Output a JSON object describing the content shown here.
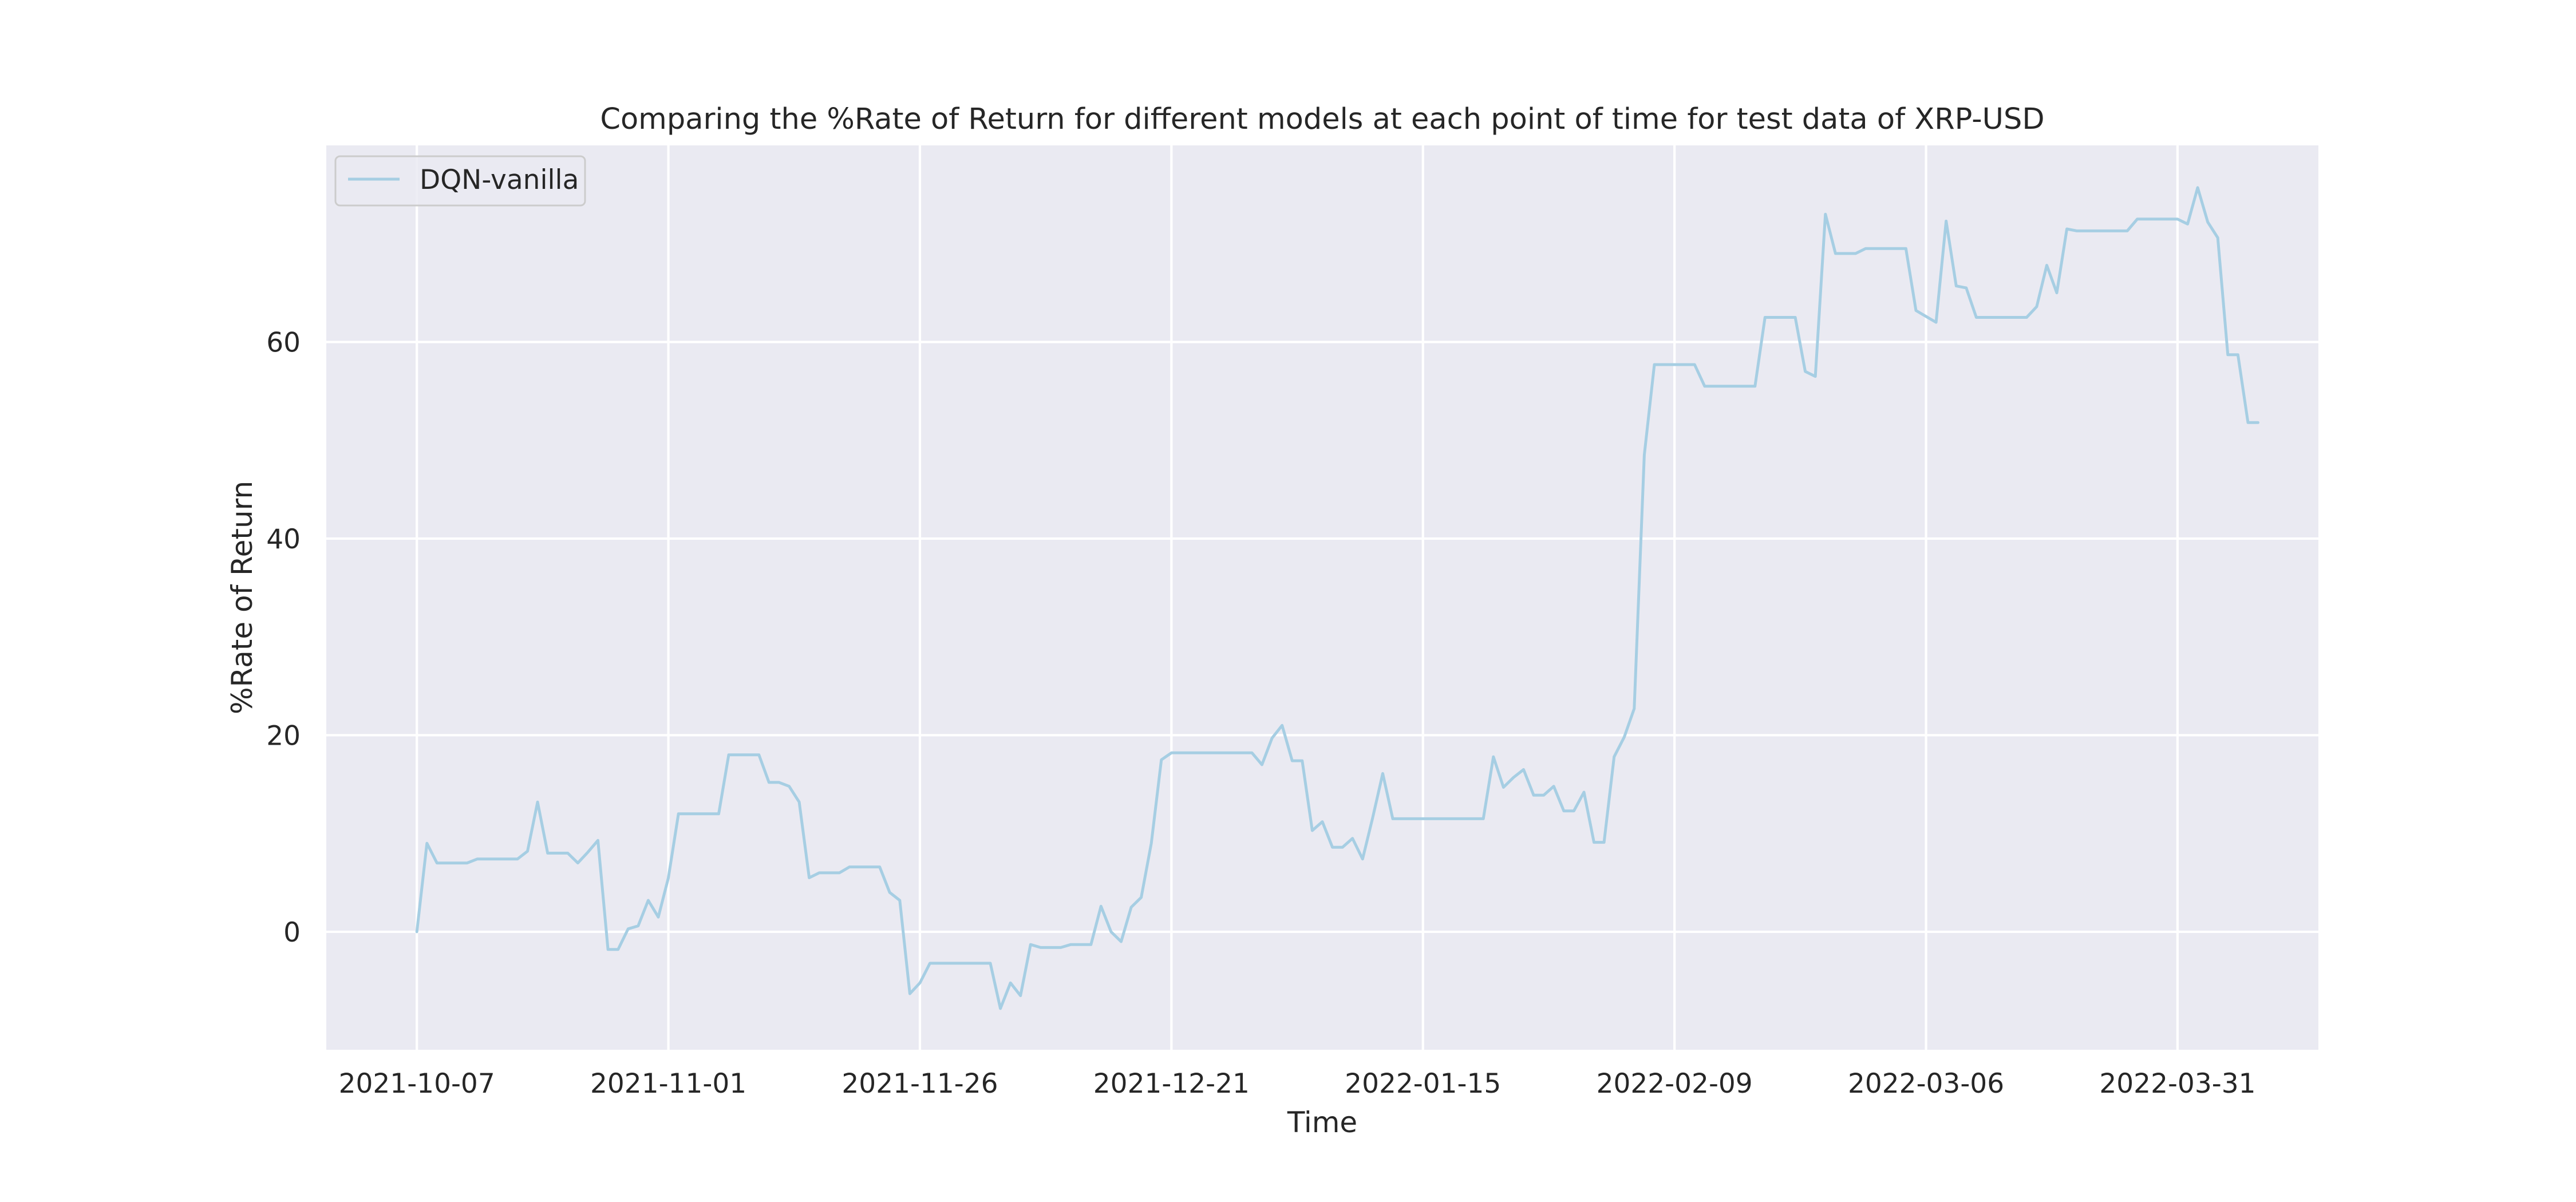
{
  "chart_data": {
    "type": "line",
    "title": "Comparing the %Rate of Return for different models at each point of time for test data of XRP-USD",
    "xlabel": "Time",
    "ylabel": "%Rate of Return",
    "x_ticks": [
      "2021-10-07",
      "2021-11-01",
      "2021-11-26",
      "2021-12-21",
      "2022-01-15",
      "2022-02-09",
      "2022-03-06",
      "2022-03-31"
    ],
    "y_ticks": [
      "0",
      "20",
      "40",
      "60"
    ],
    "xlim": [
      "2021-09-28",
      "2022-04-14"
    ],
    "ylim": [
      -12,
      80
    ],
    "grid": true,
    "legend_position": "upper-left",
    "series": [
      {
        "name": "DQN-vanilla",
        "color": "#a6cee3",
        "points": [
          [
            "2021-10-07",
            0
          ],
          [
            "2021-10-08",
            9
          ],
          [
            "2021-10-09",
            7
          ],
          [
            "2021-10-10",
            7
          ],
          [
            "2021-10-11",
            7
          ],
          [
            "2021-10-12",
            7
          ],
          [
            "2021-10-13",
            7.4
          ],
          [
            "2021-10-14",
            7.4
          ],
          [
            "2021-10-15",
            7.4
          ],
          [
            "2021-10-16",
            7.4
          ],
          [
            "2021-10-17",
            7.4
          ],
          [
            "2021-10-18",
            8.2
          ],
          [
            "2021-10-19",
            13.2
          ],
          [
            "2021-10-20",
            8
          ],
          [
            "2021-10-21",
            8
          ],
          [
            "2021-10-22",
            8
          ],
          [
            "2021-10-23",
            7
          ],
          [
            "2021-10-24",
            8.1
          ],
          [
            "2021-10-25",
            9.3
          ],
          [
            "2021-10-26",
            -1.8
          ],
          [
            "2021-10-27",
            -1.8
          ],
          [
            "2021-10-28",
            0.3
          ],
          [
            "2021-10-29",
            0.6
          ],
          [
            "2021-10-30",
            3.2
          ],
          [
            "2021-10-31",
            1.5
          ],
          [
            "2021-11-01",
            5.5
          ],
          [
            "2021-11-02",
            12
          ],
          [
            "2021-11-03",
            12
          ],
          [
            "2021-11-04",
            12
          ],
          [
            "2021-11-05",
            12
          ],
          [
            "2021-11-06",
            12
          ],
          [
            "2021-11-07",
            18
          ],
          [
            "2021-11-08",
            18
          ],
          [
            "2021-11-09",
            18
          ],
          [
            "2021-11-10",
            18
          ],
          [
            "2021-11-11",
            15.2
          ],
          [
            "2021-11-12",
            15.2
          ],
          [
            "2021-11-13",
            14.8
          ],
          [
            "2021-11-14",
            13.2
          ],
          [
            "2021-11-15",
            5.5
          ],
          [
            "2021-11-16",
            6
          ],
          [
            "2021-11-17",
            6
          ],
          [
            "2021-11-18",
            6
          ],
          [
            "2021-11-19",
            6.6
          ],
          [
            "2021-11-20",
            6.6
          ],
          [
            "2021-11-21",
            6.6
          ],
          [
            "2021-11-22",
            6.6
          ],
          [
            "2021-11-23",
            4
          ],
          [
            "2021-11-24",
            3.2
          ],
          [
            "2021-11-25",
            -6.3
          ],
          [
            "2021-11-26",
            -5.2
          ],
          [
            "2021-11-27",
            -3.2
          ],
          [
            "2021-11-28",
            -3.2
          ],
          [
            "2021-11-29",
            -3.2
          ],
          [
            "2021-11-30",
            -3.2
          ],
          [
            "2021-12-01",
            -3.2
          ],
          [
            "2021-12-02",
            -3.2
          ],
          [
            "2021-12-03",
            -3.2
          ],
          [
            "2021-12-04",
            -7.8
          ],
          [
            "2021-12-05",
            -5.2
          ],
          [
            "2021-12-06",
            -6.5
          ],
          [
            "2021-12-07",
            -1.3
          ],
          [
            "2021-12-08",
            -1.6
          ],
          [
            "2021-12-09",
            -1.6
          ],
          [
            "2021-12-10",
            -1.6
          ],
          [
            "2021-12-11",
            -1.3
          ],
          [
            "2021-12-12",
            -1.3
          ],
          [
            "2021-12-13",
            -1.3
          ],
          [
            "2021-12-14",
            2.6
          ],
          [
            "2021-12-15",
            0
          ],
          [
            "2021-12-16",
            -1
          ],
          [
            "2021-12-17",
            2.5
          ],
          [
            "2021-12-18",
            3.5
          ],
          [
            "2021-12-19",
            9
          ],
          [
            "2021-12-20",
            17.5
          ],
          [
            "2021-12-21",
            18.2
          ],
          [
            "2021-12-22",
            18.2
          ],
          [
            "2021-12-23",
            18.2
          ],
          [
            "2021-12-24",
            18.2
          ],
          [
            "2021-12-25",
            18.2
          ],
          [
            "2021-12-26",
            18.2
          ],
          [
            "2021-12-27",
            18.2
          ],
          [
            "2021-12-28",
            18.2
          ],
          [
            "2021-12-29",
            18.2
          ],
          [
            "2021-12-30",
            17
          ],
          [
            "2021-12-31",
            19.7
          ],
          [
            "2022-01-01",
            21
          ],
          [
            "2022-01-02",
            17.4
          ],
          [
            "2022-01-03",
            17.4
          ],
          [
            "2022-01-04",
            10.3
          ],
          [
            "2022-01-05",
            11.2
          ],
          [
            "2022-01-06",
            8.6
          ],
          [
            "2022-01-07",
            8.6
          ],
          [
            "2022-01-08",
            9.5
          ],
          [
            "2022-01-09",
            7.4
          ],
          [
            "2022-01-10",
            11.6
          ],
          [
            "2022-01-11",
            16.1
          ],
          [
            "2022-01-12",
            11.5
          ],
          [
            "2022-01-13",
            11.5
          ],
          [
            "2022-01-14",
            11.5
          ],
          [
            "2022-01-15",
            11.5
          ],
          [
            "2022-01-16",
            11.5
          ],
          [
            "2022-01-17",
            11.5
          ],
          [
            "2022-01-18",
            11.5
          ],
          [
            "2022-01-19",
            11.5
          ],
          [
            "2022-01-20",
            11.5
          ],
          [
            "2022-01-21",
            11.5
          ],
          [
            "2022-01-22",
            17.8
          ],
          [
            "2022-01-23",
            14.7
          ],
          [
            "2022-01-24",
            15.7
          ],
          [
            "2022-01-25",
            16.5
          ],
          [
            "2022-01-26",
            13.9
          ],
          [
            "2022-01-27",
            13.9
          ],
          [
            "2022-01-28",
            14.8
          ],
          [
            "2022-01-29",
            12.3
          ],
          [
            "2022-01-30",
            12.3
          ],
          [
            "2022-01-31",
            14.2
          ],
          [
            "2022-02-01",
            9.1
          ],
          [
            "2022-02-02",
            9.1
          ],
          [
            "2022-02-03",
            17.8
          ],
          [
            "2022-02-04",
            19.8
          ],
          [
            "2022-02-05",
            22.7
          ],
          [
            "2022-02-06",
            48.5
          ],
          [
            "2022-02-07",
            57.7
          ],
          [
            "2022-02-08",
            57.7
          ],
          [
            "2022-02-09",
            57.7
          ],
          [
            "2022-02-10",
            57.7
          ],
          [
            "2022-02-11",
            57.7
          ],
          [
            "2022-02-12",
            55.5
          ],
          [
            "2022-02-13",
            55.5
          ],
          [
            "2022-02-14",
            55.5
          ],
          [
            "2022-02-15",
            55.5
          ],
          [
            "2022-02-16",
            55.5
          ],
          [
            "2022-02-17",
            55.5
          ],
          [
            "2022-02-18",
            62.5
          ],
          [
            "2022-02-19",
            62.5
          ],
          [
            "2022-02-20",
            62.5
          ],
          [
            "2022-02-21",
            62.5
          ],
          [
            "2022-02-22",
            57
          ],
          [
            "2022-02-23",
            56.5
          ],
          [
            "2022-02-24",
            73
          ],
          [
            "2022-02-25",
            69
          ],
          [
            "2022-02-26",
            69
          ],
          [
            "2022-02-27",
            69
          ],
          [
            "2022-02-28",
            69.5
          ],
          [
            "2022-03-01",
            69.5
          ],
          [
            "2022-03-02",
            69.5
          ],
          [
            "2022-03-03",
            69.5
          ],
          [
            "2022-03-04",
            69.5
          ],
          [
            "2022-03-05",
            63.2
          ],
          [
            "2022-03-06",
            62.6
          ],
          [
            "2022-03-07",
            62
          ],
          [
            "2022-03-08",
            72.3
          ],
          [
            "2022-03-09",
            65.7
          ],
          [
            "2022-03-10",
            65.5
          ],
          [
            "2022-03-11",
            62.5
          ],
          [
            "2022-03-12",
            62.5
          ],
          [
            "2022-03-13",
            62.5
          ],
          [
            "2022-03-14",
            62.5
          ],
          [
            "2022-03-15",
            62.5
          ],
          [
            "2022-03-16",
            62.5
          ],
          [
            "2022-03-17",
            63.6
          ],
          [
            "2022-03-18",
            67.8
          ],
          [
            "2022-03-19",
            65
          ],
          [
            "2022-03-20",
            71.5
          ],
          [
            "2022-03-21",
            71.3
          ],
          [
            "2022-03-22",
            71.3
          ],
          [
            "2022-03-23",
            71.3
          ],
          [
            "2022-03-24",
            71.3
          ],
          [
            "2022-03-25",
            71.3
          ],
          [
            "2022-03-26",
            71.3
          ],
          [
            "2022-03-27",
            72.5
          ],
          [
            "2022-03-28",
            72.5
          ],
          [
            "2022-03-29",
            72.5
          ],
          [
            "2022-03-30",
            72.5
          ],
          [
            "2022-03-31",
            72.5
          ],
          [
            "2022-04-01",
            72
          ],
          [
            "2022-04-02",
            75.7
          ],
          [
            "2022-04-03",
            72.2
          ],
          [
            "2022-04-04",
            70.6
          ],
          [
            "2022-04-05",
            58.7
          ],
          [
            "2022-04-06",
            58.7
          ],
          [
            "2022-04-07",
            51.8
          ],
          [
            "2022-04-08",
            51.8
          ]
        ]
      }
    ]
  }
}
